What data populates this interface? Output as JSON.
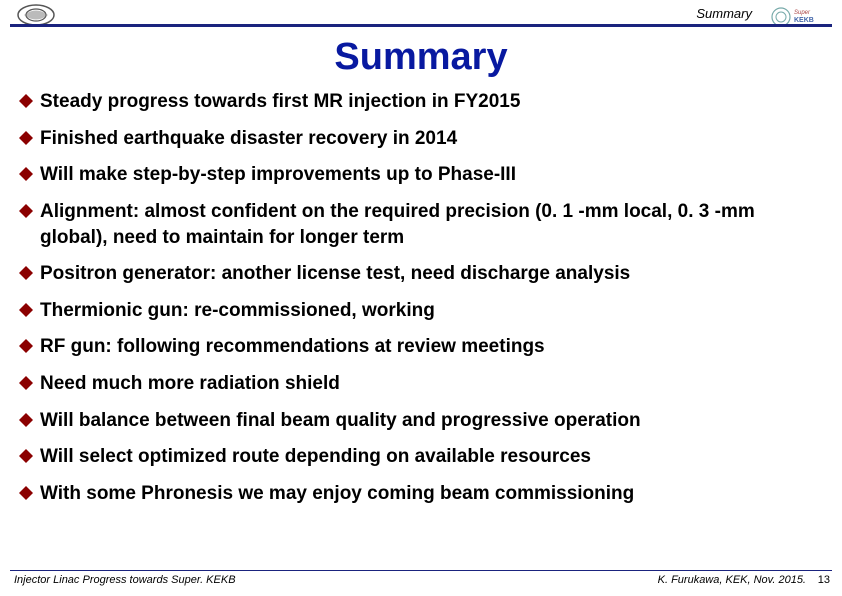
{
  "header": {
    "label": "Summary"
  },
  "title": "Summary",
  "bullets": [
    "Steady progress towards first MR injection in FY2015",
    "Finished earthquake disaster recovery in 2014",
    "Will make step-by-step improvements up to Phase-III",
    "Alignment: almost confident on the required precision (0. 1 -mm local, 0. 3 -mm global), need to maintain for longer term",
    "Positron generator: another license test, need discharge analysis",
    "Thermionic gun: re-commissioned, working",
    "RF gun: following recommendations at review meetings",
    "Need much more radiation shield",
    "Will balance between final beam quality and progressive operation",
    "Will select optimized route depending on available resources",
    "With some Phronesis we may enjoy coming beam commissioning"
  ],
  "bullet_style": {
    "marker_fill": "#8b0000",
    "marker_shape": "diamond"
  },
  "footer": {
    "left": "Injector Linac Progress towards Super. KEKB",
    "right": "K. Furukawa, KEK, Nov. 2015.",
    "page": "13"
  },
  "colors": {
    "title_color": "#0819a0",
    "rule_color": "#1a237e",
    "text_color": "#000000",
    "background": "#ffffff"
  },
  "typography": {
    "title_fontsize_pt": 29,
    "bullet_fontsize_pt": 14,
    "header_label_fontsize_pt": 10,
    "footer_fontsize_pt": 8
  }
}
